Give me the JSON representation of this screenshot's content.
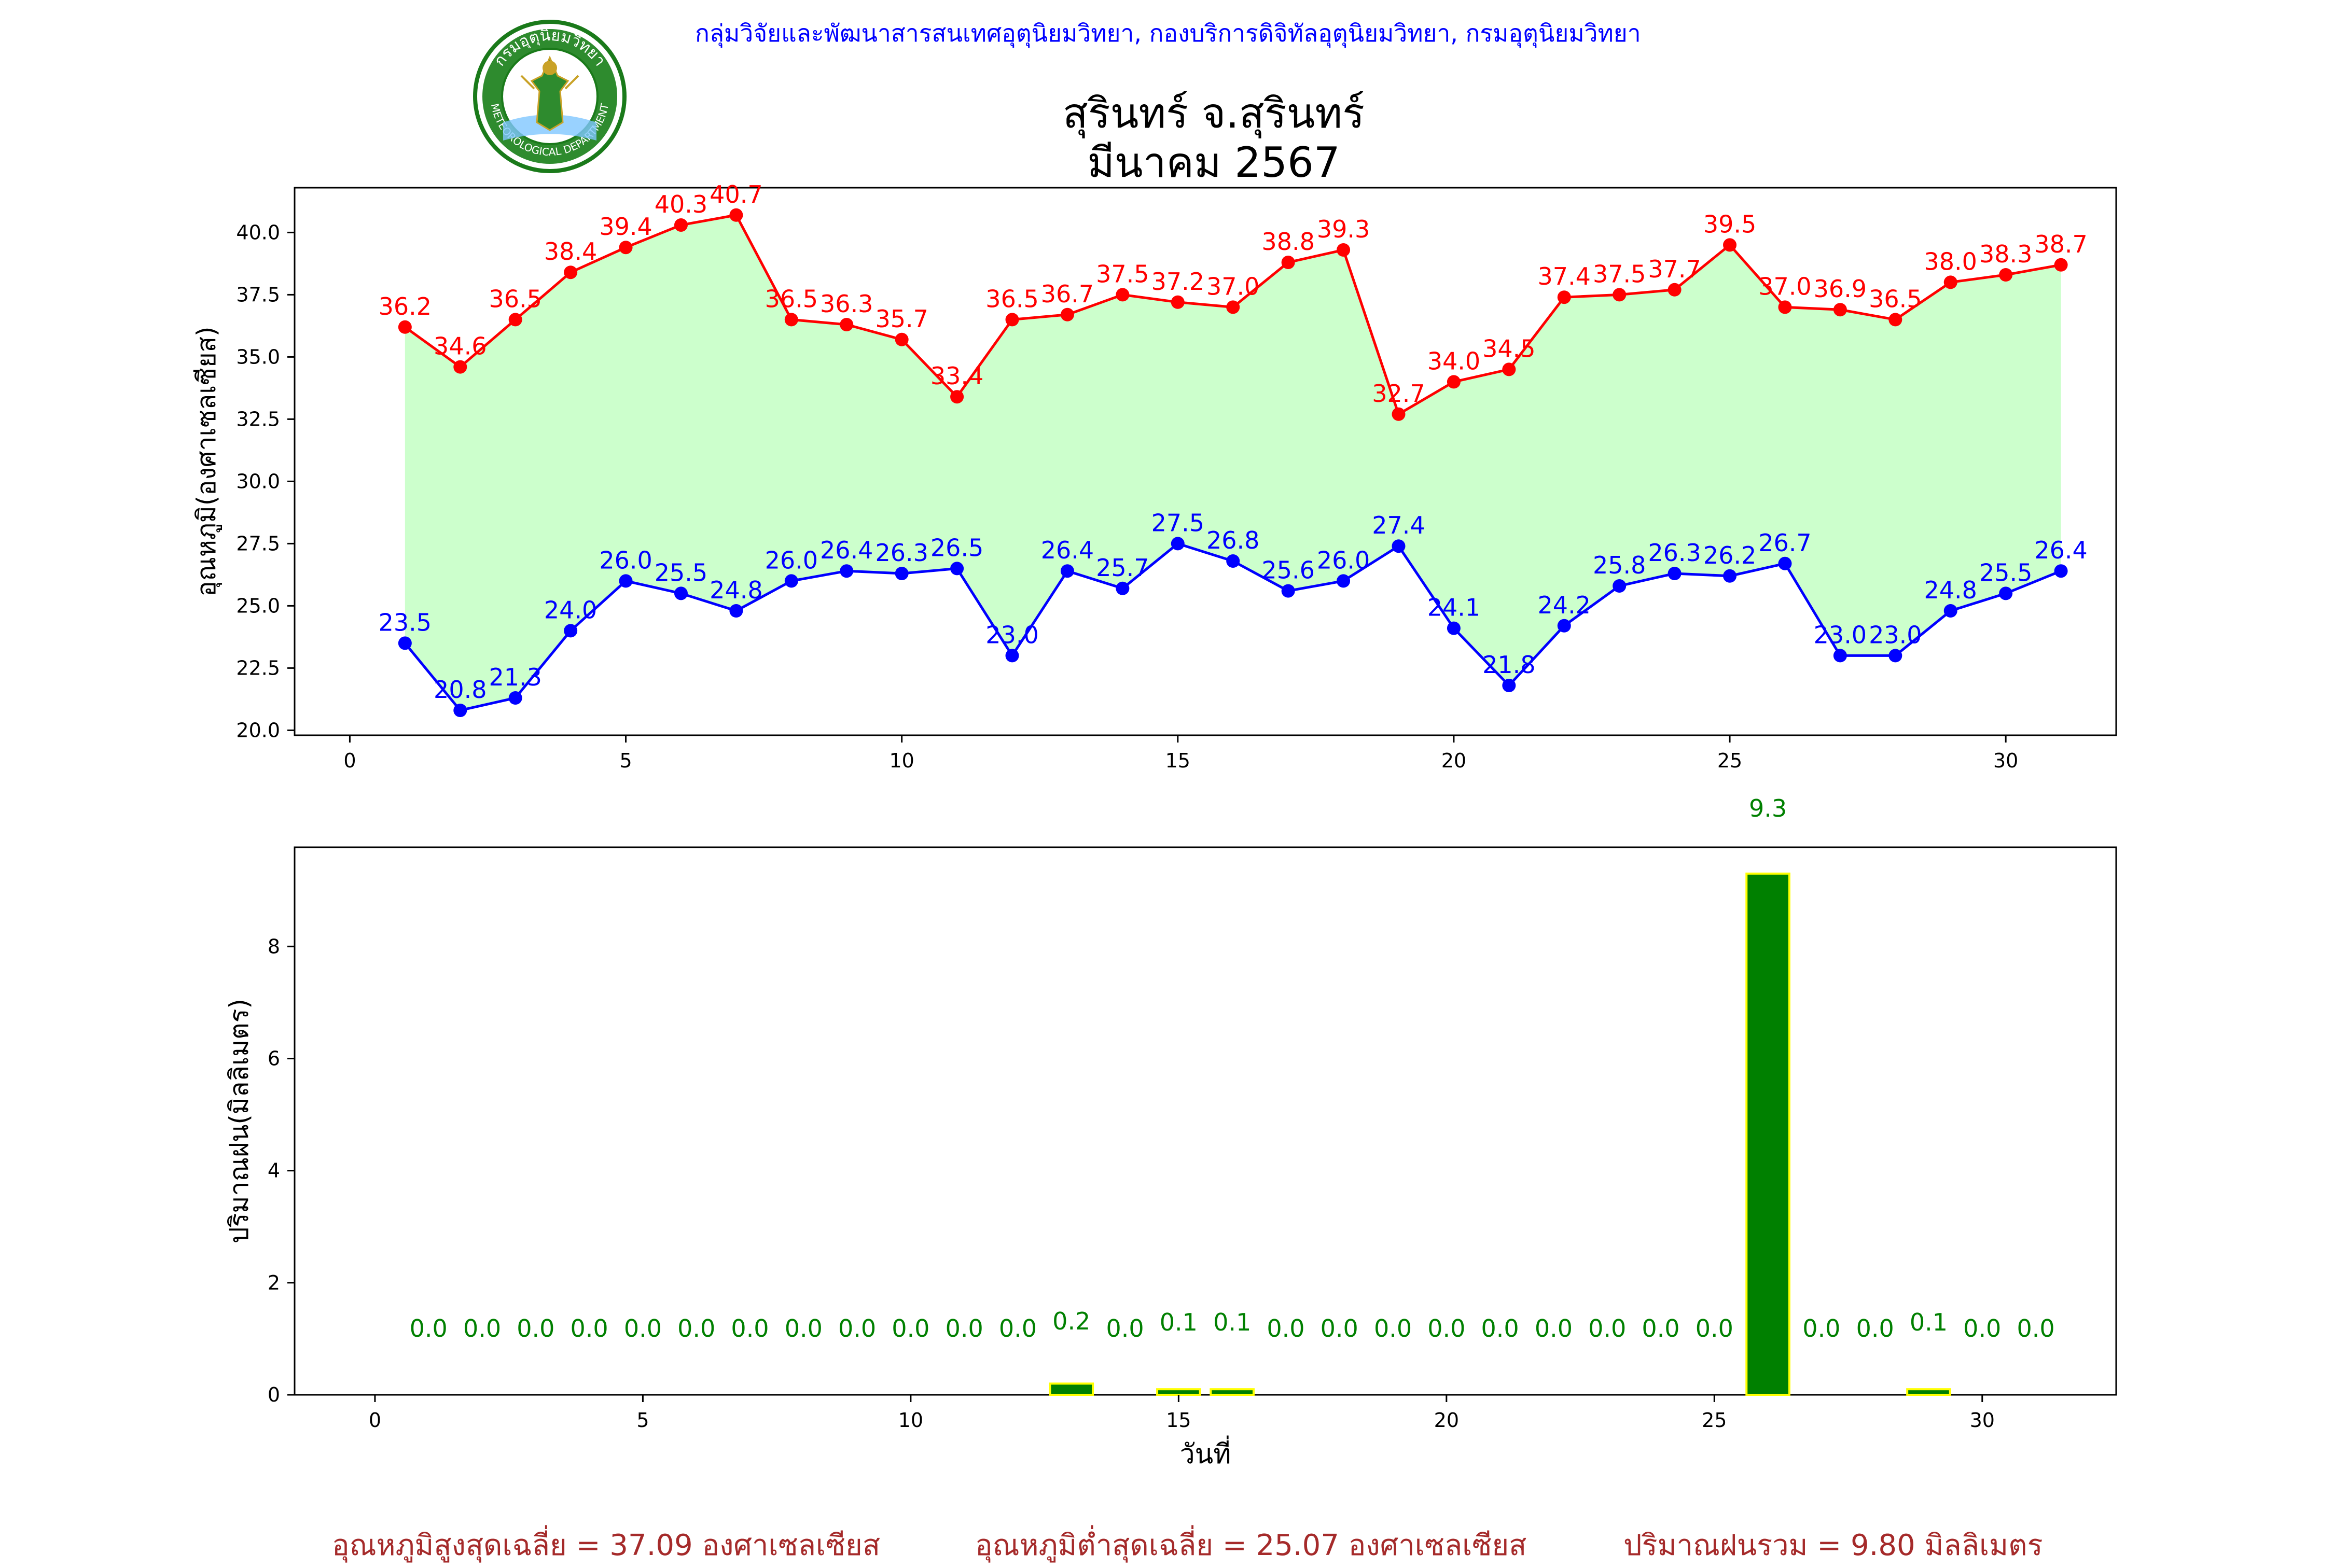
{
  "header": {
    "agency_line": "กลุ่มวิจัยและพัฒนาสารสนเทศอุตุนิยมวิทยา, กองบริการดิจิทัลอุตุนิยมวิทยา, กรมอุตุนิยมวิทยา",
    "logo_text_top": "กรมอุตุนิยมวิทยา",
    "logo_text_bottom": "METEOROLOGICAL DEPARTMENT"
  },
  "title": {
    "station": "สุรินทร์ จ.สุรินทร์",
    "period": "มีนาคม 2567"
  },
  "colors": {
    "max_temp": "#ff0000",
    "min_temp": "#0000ff",
    "fill": "#ccffcc",
    "rain_bar": "#008000",
    "rain_edge": "#ffff00",
    "rain_label": "#008000",
    "footer": "#a52a2a"
  },
  "chart_data": [
    {
      "type": "line",
      "ylabel": "อุณหภูมิ(องศาเซลเซียส)",
      "xlim": [
        -1,
        32
      ],
      "ylim": [
        19.8,
        41.8
      ],
      "xticks": [
        0,
        5,
        10,
        15,
        20,
        25,
        30
      ],
      "yticks": [
        20.0,
        22.5,
        25.0,
        27.5,
        30.0,
        32.5,
        35.0,
        37.5,
        40.0
      ],
      "ytick_labels": [
        "20.0",
        "22.5",
        "25.0",
        "27.5",
        "30.0",
        "32.5",
        "35.0",
        "37.5",
        "40.0"
      ],
      "x": [
        1,
        2,
        3,
        4,
        5,
        6,
        7,
        8,
        9,
        10,
        11,
        12,
        13,
        14,
        15,
        16,
        17,
        18,
        19,
        20,
        21,
        22,
        23,
        24,
        25,
        26,
        27,
        28,
        29,
        30,
        31
      ],
      "series": [
        {
          "values": [
            36.2,
            34.6,
            36.5,
            38.4,
            39.4,
            40.3,
            40.7,
            36.5,
            36.3,
            35.7,
            33.4,
            36.5,
            36.7,
            37.5,
            37.2,
            37.0,
            38.8,
            39.3,
            32.7,
            34.0,
            34.5,
            37.4,
            37.5,
            37.7,
            39.5,
            37.0,
            36.9,
            36.5,
            38.0,
            38.3,
            38.7
          ],
          "labels": [
            "36.2",
            "34.6",
            "36.5",
            "38.4",
            "39.4",
            "40.3",
            "40.7",
            "36.5",
            "36.3",
            "35.7",
            "33.4",
            "36.5",
            "36.7",
            "37.5",
            "37.2",
            "37.0",
            "38.8",
            "39.3",
            "32.7",
            "34.0",
            "34.5",
            "37.4",
            "37.5",
            "37.7",
            "39.5",
            "37.0",
            "36.9",
            "36.5",
            "38.0",
            "38.3",
            "38.7"
          ]
        },
        {
          "values": [
            23.5,
            20.8,
            21.3,
            24.0,
            26.0,
            25.5,
            24.8,
            26.0,
            26.4,
            26.3,
            26.5,
            23.0,
            26.4,
            25.7,
            27.5,
            26.8,
            25.6,
            26.0,
            27.4,
            24.1,
            21.8,
            24.2,
            25.8,
            26.3,
            26.2,
            26.7,
            23.0,
            23.0,
            24.8,
            25.5,
            26.4
          ],
          "labels": [
            "23.5",
            "20.8",
            "21.3",
            "24.0",
            "26.0",
            "25.5",
            "24.8",
            "26.0",
            "26.4",
            "26.3",
            "26.5",
            "23.0",
            "26.4",
            "25.7",
            "27.5",
            "26.8",
            "25.6",
            "26.0",
            "27.4",
            "24.1",
            "21.8",
            "24.2",
            "25.8",
            "26.3",
            "26.2",
            "26.7",
            "23.0",
            "23.0",
            "24.8",
            "25.5",
            "26.4"
          ]
        }
      ],
      "grid": false
    },
    {
      "type": "bar",
      "xlabel": "วันที่",
      "ylabel": "ปริมาณฝน(มิลลิเมตร)",
      "xlim": [
        -1.5,
        32.5
      ],
      "ylim": [
        0,
        9.77
      ],
      "xticks": [
        0,
        5,
        10,
        15,
        20,
        25,
        30
      ],
      "yticks": [
        0,
        2,
        4,
        6,
        8
      ],
      "x": [
        1,
        2,
        3,
        4,
        5,
        6,
        7,
        8,
        9,
        10,
        11,
        12,
        13,
        14,
        15,
        16,
        17,
        18,
        19,
        20,
        21,
        22,
        23,
        24,
        25,
        26,
        27,
        28,
        29,
        30,
        31
      ],
      "values": [
        0.0,
        0.0,
        0.0,
        0.0,
        0.0,
        0.0,
        0.0,
        0.0,
        0.0,
        0.0,
        0.0,
        0.0,
        0.2,
        0.0,
        0.1,
        0.1,
        0.0,
        0.0,
        0.0,
        0.0,
        0.0,
        0.0,
        0.0,
        0.0,
        0.0,
        9.3,
        0.0,
        0.0,
        0.1,
        0.0,
        0.0
      ],
      "labels": [
        "0.0",
        "0.0",
        "0.0",
        "0.0",
        "0.0",
        "0.0",
        "0.0",
        "0.0",
        "0.0",
        "0.0",
        "0.0",
        "0.0",
        "0.2",
        "0.0",
        "0.1",
        "0.1",
        "0.0",
        "0.0",
        "0.0",
        "0.0",
        "0.0",
        "0.0",
        "0.0",
        "0.0",
        "0.0",
        "9.3",
        "0.0",
        "0.0",
        "0.1",
        "0.0",
        "0.0"
      ],
      "grid": false
    }
  ],
  "footer": {
    "avg_max": "อุณหภูมิสูงสุดเฉลี่ย = 37.09 องศาเซลเซียส",
    "avg_min": "อุณหภูมิต่ำสุดเฉลี่ย = 25.07 องศาเซลเซียส",
    "total_rain": "ปริมาณฝนรวม = 9.80 มิลลิเมตร"
  }
}
